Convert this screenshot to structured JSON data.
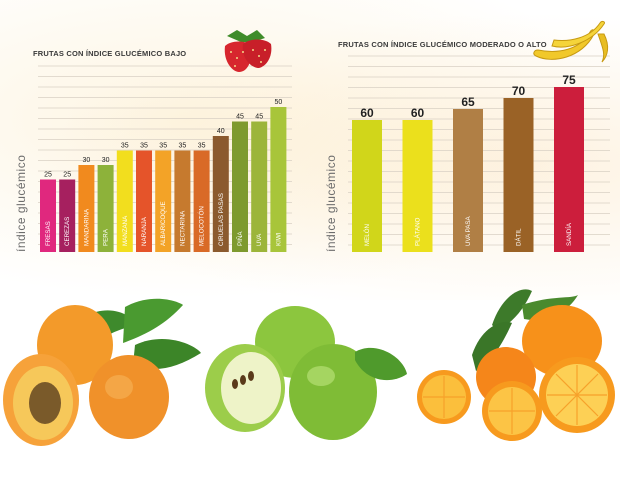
{
  "chart_data": [
    {
      "type": "bar",
      "title": "FRUTAS CON ÍNDICE GLUCÉMICO BAJO",
      "ylabel": "índice glucémico",
      "ylim": [
        0,
        60
      ],
      "grid": true,
      "categories": [
        "FRESAS",
        "CEREZAS",
        "MANDARINA",
        "PERA",
        "MANZANA",
        "NARANJA",
        "ALBARICOQUE",
        "NECTARINA",
        "MELOCOTÓN",
        "CIRUELAS PASAS",
        "PIÑA",
        "UVA",
        "KIWI"
      ],
      "values": [
        25,
        25,
        30,
        30,
        35,
        35,
        35,
        35,
        35,
        40,
        45,
        45,
        50
      ],
      "colors": [
        "#e0287e",
        "#a6205f",
        "#f18a1e",
        "#8db23a",
        "#f2de1e",
        "#e5542a",
        "#f3a327",
        "#c67a2e",
        "#d96a27",
        "#8b5a2e",
        "#7e9a2e",
        "#9cb53a",
        "#a8c53a"
      ]
    },
    {
      "type": "bar",
      "title": "FRUTAS CON ÍNDICE GLUCÉMICO MODERADO O ALTO",
      "ylabel": "índice glucémico",
      "ylim": [
        0,
        85
      ],
      "grid": true,
      "categories": [
        "MELÓN",
        "PLÁTANO",
        "UVA PASA",
        "DÁTIL",
        "SANDÍA"
      ],
      "values": [
        60,
        60,
        65,
        70,
        75
      ],
      "colors": [
        "#d1d61a",
        "#ebe01c",
        "#b07f45",
        "#9a6226",
        "#cc1e3c"
      ]
    }
  ],
  "fruit_icons": [
    "strawberry-icon",
    "banana-icon",
    "apricot-icon",
    "green-apple-icon",
    "orange-icon"
  ]
}
